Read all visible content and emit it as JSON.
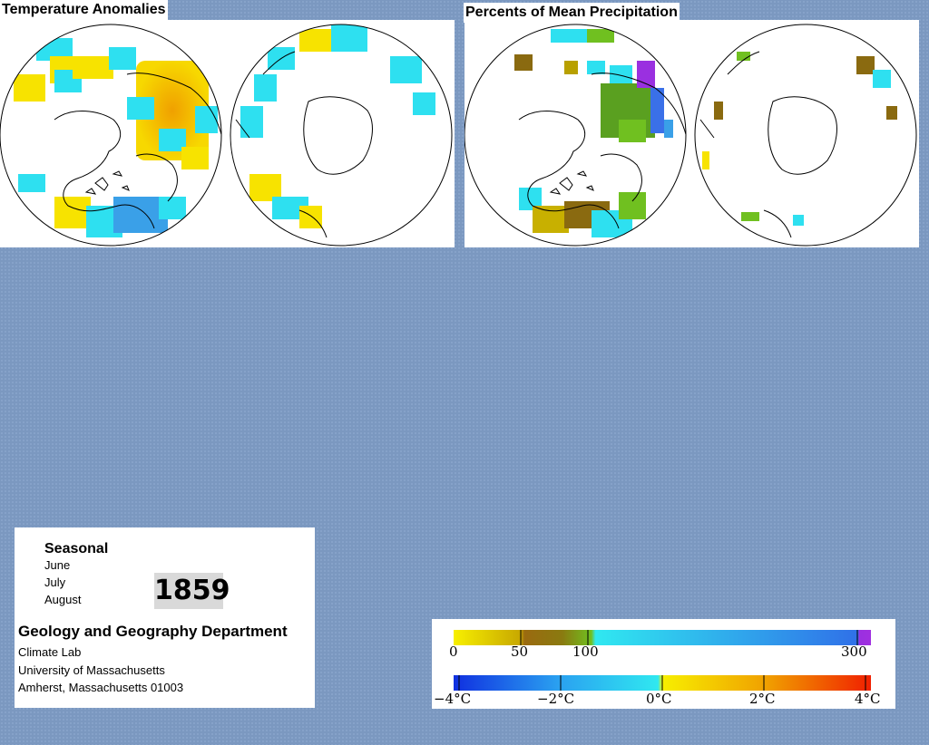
{
  "temperature_panel": {
    "title": "Temperature Anomalies"
  },
  "precipitation_panel": {
    "title": "Percents of Mean Precipitation"
  },
  "info": {
    "season": "Seasonal",
    "months": [
      "June",
      "July",
      "August"
    ],
    "year": "1859",
    "department": "Geology and Geography Department",
    "lines": [
      "Climate Lab",
      "University of Massachusetts",
      "Amherst, Massachusetts 01003"
    ]
  },
  "legend": {
    "precip_labels": [
      "0",
      "50",
      "100",
      "300"
    ],
    "temp_labels": [
      "−4°C",
      "−2°C",
      "0°C",
      "2°C",
      "4°C"
    ]
  },
  "colors": {
    "background": "#7b98c0",
    "warm_anomaly": "#f7e300",
    "cool_anomaly": "#2ee0f0",
    "strong_warm": "#f0a000",
    "strong_cool": "#3aa0e8",
    "dry": "#8a6a10",
    "normal_precip": "#70c020",
    "wet": "#9a30e0"
  }
}
